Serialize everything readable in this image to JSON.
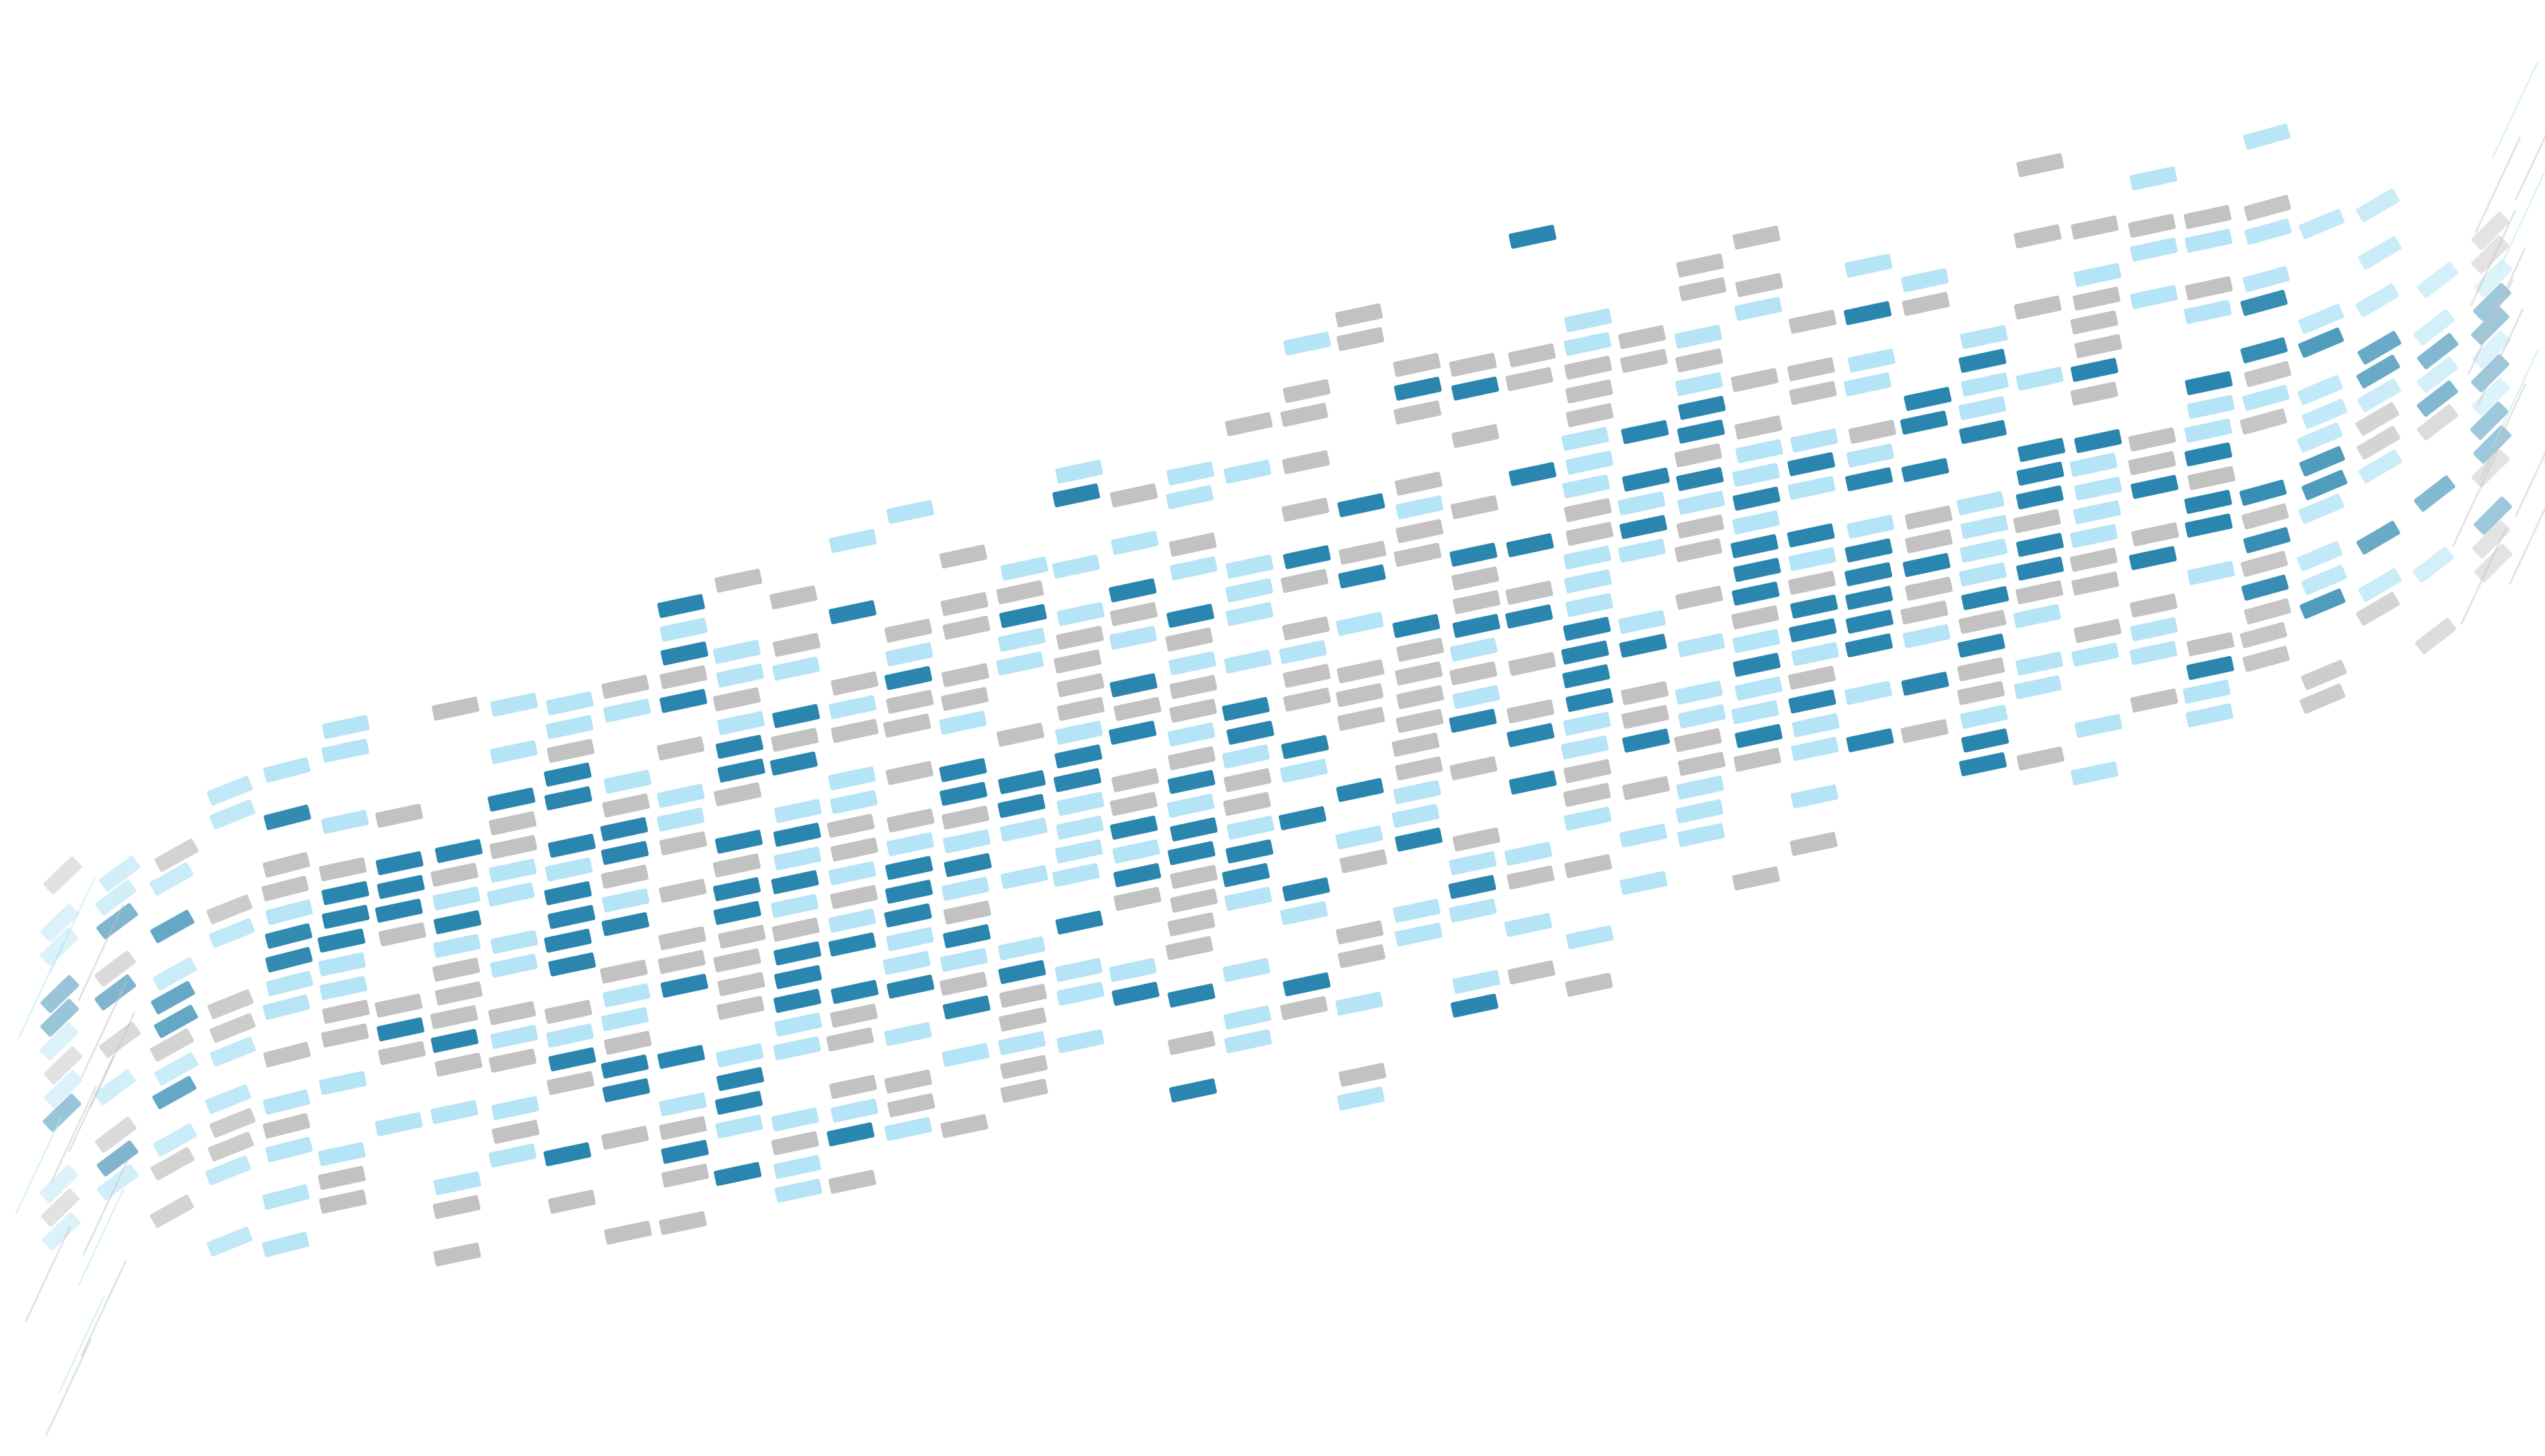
{
  "title": "",
  "palette": {
    "dark": "#2a86ae",
    "light": "#b4e4f5",
    "gray": "#c2c2c2",
    "background": "#ffffff"
  }
}
